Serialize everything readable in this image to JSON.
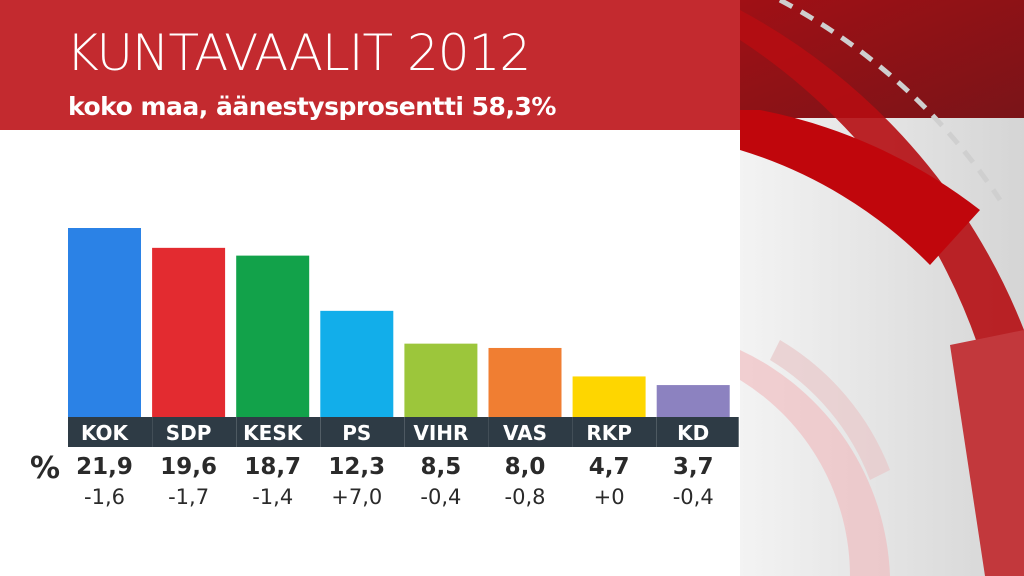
{
  "header": {
    "title": "KUNTAVAALIT 2012",
    "subtitle": "koko maa, äänestysprosentti 58,3%"
  },
  "chart_data": {
    "type": "bar",
    "title": "KUNTAVAALIT 2012",
    "subtitle": "koko maa, äänestysprosentti 58,3%",
    "unit_label": "%",
    "categories": [
      "KOK",
      "SDP",
      "KESK",
      "PS",
      "VIHR",
      "VAS",
      "RKP",
      "KD"
    ],
    "values": [
      21.9,
      19.6,
      18.7,
      12.3,
      8.5,
      8.0,
      4.7,
      3.7
    ],
    "value_labels": [
      "21,9",
      "19,6",
      "18,7",
      "12,3",
      "8,5",
      "8,0",
      "4,7",
      "3,7"
    ],
    "change_labels": [
      "-1,6",
      "-1,7",
      "-1,4",
      "+7,0",
      "-0,4",
      "-0,8",
      "+0",
      "-0,4"
    ],
    "colors": [
      "#2b82e6",
      "#e32b30",
      "#12a24a",
      "#12aeea",
      "#9cc63b",
      "#f07e32",
      "#fed600",
      "#8c82c0"
    ],
    "label_bg": "#2e3b45",
    "ylim": [
      0,
      22
    ],
    "grid": false
  },
  "theme": {
    "header_color": "#c32a2f"
  }
}
